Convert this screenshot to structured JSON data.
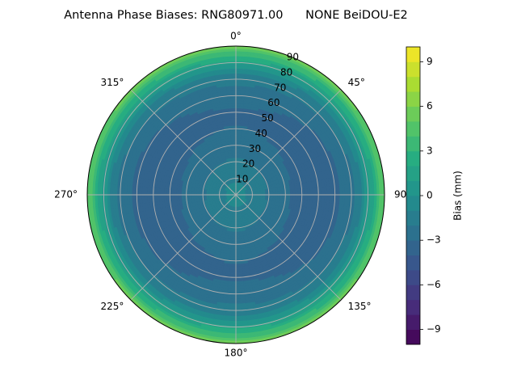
{
  "chart_data": {
    "type": "polar-contour",
    "title": "Antenna Phase Biases: RNG80971.00      NONE BeiDOU-E2",
    "angle_zero": "top",
    "angle_direction": "clockwise",
    "angle_ticks": [
      {
        "deg": 0,
        "label": "0°"
      },
      {
        "deg": 45,
        "label": "45°"
      },
      {
        "deg": 90,
        "label": "90°"
      },
      {
        "deg": 135,
        "label": "135°"
      },
      {
        "deg": 180,
        "label": "180°"
      },
      {
        "deg": 225,
        "label": "225°"
      },
      {
        "deg": 270,
        "label": "270°"
      },
      {
        "deg": 315,
        "label": "315°"
      }
    ],
    "radial_range": [
      0,
      90
    ],
    "radial_ticks": [
      10,
      20,
      30,
      40,
      50,
      60,
      70,
      80,
      90
    ],
    "radial_tick_labels": [
      "10",
      "20",
      "30",
      "40",
      "50",
      "60",
      "70",
      "80",
      "90"
    ],
    "radial_label_angle_deg": 22.5,
    "grid": true,
    "colormap": "viridis",
    "levels": 20,
    "colorbar": {
      "label": "Bias (mm)",
      "range": [
        -10,
        10
      ],
      "ticks": [
        -9,
        -6,
        -3,
        0,
        3,
        6,
        9
      ],
      "tick_labels": [
        "−9",
        "−6",
        "−3",
        "0",
        "3",
        "6",
        "9"
      ],
      "placement": "right"
    },
    "bias_field": {
      "zenith_distance_deg": [
        0,
        10,
        20,
        30,
        40,
        50,
        60,
        70,
        75,
        80,
        85,
        90
      ],
      "bias_mm": [
        -0.5,
        -1.2,
        -2.0,
        -2.6,
        -3.2,
        -3.4,
        -3.0,
        -2.0,
        -1.0,
        1.0,
        3.0,
        5.5
      ]
    }
  }
}
